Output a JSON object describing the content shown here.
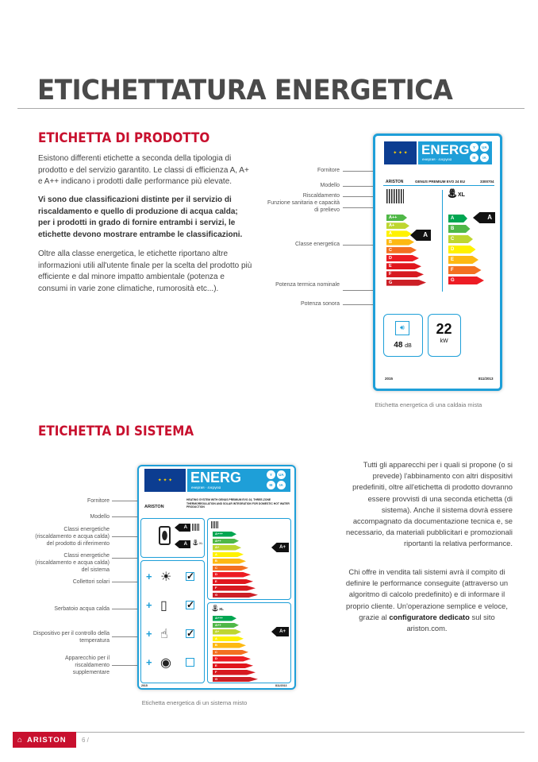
{
  "title": "ETICHETTATURA ENERGETICA",
  "product": {
    "heading": "ETICHETTA DI PRODOTTO",
    "p1": "Esistono differenti etichette a seconda della tipologia di prodotto e del servizio garantito. Le classi di efficienza A, A+ e A++ indicano i prodotti dalle performance più elevate.",
    "p2": "Vi sono due classificazioni distinte per il servizio di riscaldamento e quello di produzione di acqua calda; per i prodotti in grado di fornire entrambi i servizi, le etichette devono mostrare entrambe le classificazioni.",
    "p3": "Oltre alla classe energetica, le etichette riportano altre informazioni utili all'utente finale per la scelta del prodotto più efficiente e dal minore impatto ambientale (potenza e consumi in varie zone climatiche, rumorosità etc...).",
    "labels": {
      "fornitore": "Fornitore",
      "modello": "Modello",
      "riscaldamento": "Riscaldamento",
      "sanitaria": "Funzione sanitaria e capacità di prelievo",
      "classe": "Classe energetica",
      "potenza_termica": "Potenza termica nominale",
      "potenza_sonora": "Potenza sonora"
    },
    "caption": "Etichetta energetica di una caldaia mista",
    "label": {
      "energ": "ENERG",
      "energ_sub": "енергия · ενεργεια",
      "langs": [
        "Y",
        "UA",
        "IE",
        "IA"
      ],
      "brand": "ARISTON",
      "model": "GENUS PREMIUM EVO 24 EU",
      "code": "3300704",
      "xl": "XL",
      "heating_scale": [
        "A++",
        "A+",
        "A",
        "B",
        "C",
        "D",
        "E",
        "F",
        "G"
      ],
      "heating_class": "A",
      "water_scale": [
        "A",
        "B",
        "C",
        "D",
        "E",
        "F",
        "G"
      ],
      "water_class": "A",
      "sound_value": "48",
      "sound_unit": "dB",
      "power_value": "22",
      "power_unit": "kW",
      "year": "2015",
      "regulation": "811/2013"
    }
  },
  "system": {
    "heading": "ETICHETTA DI SISTEMA",
    "labels": {
      "fornitore": "Fornitore",
      "modello": "Modello",
      "classi_prodotto": "Classi energetiche (riscaldamento e acqua calda) del prodotto di riferimento",
      "classi_sistema": "Classi energetiche (riscaldamento e acqua calda) del sistema",
      "collettori": "Collettori solari",
      "serbatoio": "Serbatoio acqua calda",
      "dispositivo": "Dispositivo per il controllo della temperatura",
      "apparecchio": "Apparecchio per il riscaldamento supplementare"
    },
    "caption": "Etichetta energetica di un sistema misto",
    "label": {
      "energ": "ENERG",
      "energ_sub": "енергия · ενεργεια",
      "langs": [
        "Y",
        "UA",
        "IE",
        "IA"
      ],
      "brand": "ARISTON",
      "description": "HEATING SYSTEM WITH GENUS PREMIUM EVO 24, THREE-ZONE THERMOREGULATION AND SOLAR INTEGRATION FOR DOMESTIC HOT WATER PRODUCTION",
      "product_heating_class": "A",
      "product_water_class": "A",
      "xl": "XL",
      "scale": [
        "A+++",
        "A++",
        "A+",
        "A",
        "B",
        "C",
        "D",
        "E",
        "F",
        "G"
      ],
      "system_heating_class": "A+",
      "system_water_class": "A+",
      "components": [
        {
          "name": "solar-collectors",
          "checked": true
        },
        {
          "name": "hot-water-tank",
          "checked": true
        },
        {
          "name": "temperature-control",
          "checked": true
        },
        {
          "name": "supplementary-heater",
          "checked": false
        }
      ],
      "year": "2015",
      "regulation": "811/2013"
    },
    "p1": "Tutti gli apparecchi per i quali si propone (o si prevede) l'abbinamento con altri dispositivi predefiniti, oltre all'etichetta di prodotto dovranno essere provvisti di una seconda etichetta (di sistema). Anche il sistema dovrà essere accompagnato da documentazione tecnica e, se necessario, da materiali pubblicitari e promozionali riportanti la relativa performance.",
    "p2_a": "Chi offre in vendita tali sistemi avrà il compito di definire le performance conseguite (attraverso un algoritmo di calcolo predefinito) e di informare il proprio cliente. Un'operazione semplice e veloce, grazie al ",
    "p2_bold": "configuratore dedicato",
    "p2_b": " sul sito ariston.com."
  },
  "footer": {
    "brand": "ARISTON",
    "page": "6 /"
  },
  "colors": {
    "brand_red": "#c8102e",
    "label_blue": "#1e9fd8",
    "eu_blue": "#0c3d91"
  }
}
